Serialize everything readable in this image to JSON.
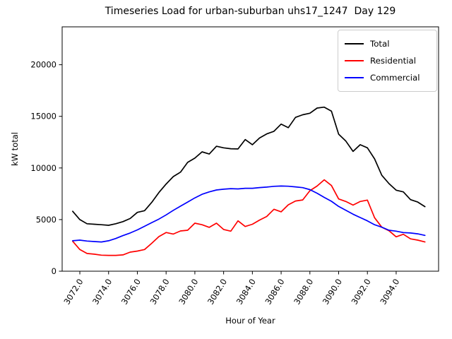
{
  "figure": {
    "background": "#ffffff"
  },
  "chart_data": {
    "type": "line",
    "title": "Timeseries Load for urban-suburban uhs17_1247  Day 129",
    "xlabel": "Hour of Year",
    "ylabel": "kW total",
    "xlim": [
      3070.77,
      3096.95
    ],
    "ylim": [
      0,
      23670
    ],
    "grid": false,
    "legend_position": "upper right",
    "xticks": [
      {
        "value": 3072,
        "label": "3072.0"
      },
      {
        "value": 3074,
        "label": "3074.0"
      },
      {
        "value": 3076,
        "label": "3076.0"
      },
      {
        "value": 3078,
        "label": "3078.0"
      },
      {
        "value": 3080,
        "label": "3080.0"
      },
      {
        "value": 3082,
        "label": "3082.0"
      },
      {
        "value": 3084,
        "label": "3084.0"
      },
      {
        "value": 3086,
        "label": "3086.0"
      },
      {
        "value": 3088,
        "label": "3088.0"
      },
      {
        "value": 3090,
        "label": "3090.0"
      },
      {
        "value": 3092,
        "label": "3092.0"
      },
      {
        "value": 3094,
        "label": "3094.0"
      }
    ],
    "yticks": [
      {
        "value": 0,
        "label": "0"
      },
      {
        "value": 5000,
        "label": "5000"
      },
      {
        "value": 10000,
        "label": "10000"
      },
      {
        "value": 15000,
        "label": "15000"
      },
      {
        "value": 20000,
        "label": "20000"
      }
    ],
    "x": [
      3071.5,
      3072.0,
      3072.5,
      3073.0,
      3073.5,
      3074.0,
      3074.5,
      3075.0,
      3075.5,
      3076.0,
      3076.5,
      3077.0,
      3077.5,
      3078.0,
      3078.5,
      3079.0,
      3079.5,
      3080.0,
      3080.5,
      3081.0,
      3081.5,
      3082.0,
      3082.5,
      3083.0,
      3083.5,
      3084.0,
      3084.5,
      3085.0,
      3085.5,
      3086.0,
      3086.5,
      3087.0,
      3087.5,
      3088.0,
      3088.5,
      3089.0,
      3089.5,
      3090.0,
      3090.5,
      3091.0,
      3091.5,
      3092.0,
      3092.5,
      3093.0,
      3093.5,
      3094.0,
      3094.5,
      3095.0,
      3095.5,
      3096.0
    ],
    "series": [
      {
        "name": "Total",
        "color": "#000000",
        "values": [
          5800,
          5000,
          4600,
          4550,
          4500,
          4450,
          4600,
          4800,
          5100,
          5700,
          5860,
          6660,
          7620,
          8440,
          9170,
          9600,
          10540,
          10950,
          11560,
          11350,
          12100,
          11950,
          11860,
          11840,
          12750,
          12250,
          12900,
          13300,
          13550,
          14250,
          13900,
          14900,
          15150,
          15300,
          15800,
          15890,
          15500,
          13270,
          12600,
          11600,
          12250,
          11950,
          10880,
          9290,
          8480,
          7850,
          7680,
          6930,
          6700,
          6250
        ]
      },
      {
        "name": "Residential",
        "color": "#ff0000",
        "values": [
          2900,
          2100,
          1720,
          1650,
          1550,
          1530,
          1530,
          1580,
          1850,
          1950,
          2100,
          2700,
          3350,
          3750,
          3600,
          3900,
          3970,
          4650,
          4500,
          4250,
          4650,
          4040,
          3880,
          4880,
          4330,
          4550,
          4950,
          5300,
          6000,
          5750,
          6430,
          6800,
          6900,
          7800,
          8250,
          8850,
          8300,
          7000,
          6750,
          6400,
          6750,
          6890,
          5180,
          4260,
          3920,
          3330,
          3580,
          3130,
          3010,
          2830
        ]
      },
      {
        "name": "Commercial",
        "color": "#0000ff",
        "values": [
          2950,
          3010,
          2920,
          2870,
          2830,
          2950,
          3170,
          3450,
          3700,
          4000,
          4350,
          4700,
          5050,
          5450,
          5900,
          6300,
          6700,
          7100,
          7450,
          7680,
          7870,
          7940,
          8000,
          7970,
          8030,
          8030,
          8100,
          8150,
          8220,
          8250,
          8230,
          8170,
          8090,
          7900,
          7550,
          7150,
          6770,
          6270,
          5900,
          5520,
          5200,
          4880,
          4500,
          4260,
          3970,
          3880,
          3740,
          3700,
          3620,
          3470
        ]
      }
    ]
  }
}
